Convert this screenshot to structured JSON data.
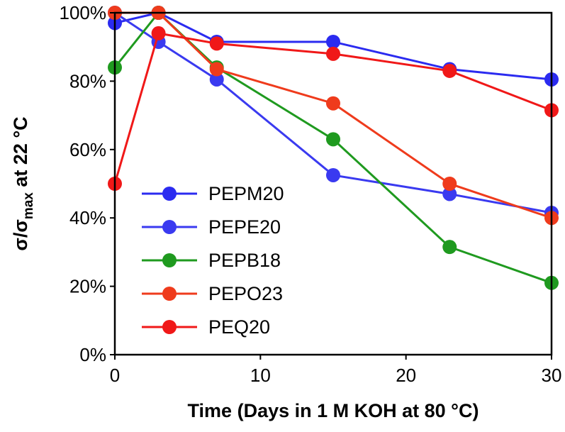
{
  "chart_data": {
    "type": "line",
    "title": "",
    "xlabel": "Time (Days in 1 M KOH at 80 °C)",
    "ylabel": {
      "main": "σ/σ",
      "sub": "max",
      "rest": " at 22 °C"
    },
    "xlim": [
      0,
      30
    ],
    "ylim": [
      0,
      100
    ],
    "xticks": [
      0,
      10,
      20,
      30
    ],
    "yticks": [
      0,
      20,
      40,
      60,
      80,
      100
    ],
    "ytick_labels": [
      "0%",
      "20%",
      "40%",
      "60%",
      "80%",
      "100%"
    ],
    "grid": false,
    "legend_position": "bottom-left",
    "series": [
      {
        "name": "PEPM20",
        "color": "#2b2bf0",
        "x": [
          0,
          3,
          7,
          15,
          23,
          30
        ],
        "values": [
          97,
          100,
          91.5,
          91.5,
          83.5,
          80.5
        ]
      },
      {
        "name": "PEPE20",
        "color": "#3a3af0",
        "x": [
          0,
          3,
          7,
          15,
          23,
          30
        ],
        "values": [
          100,
          91.5,
          80.5,
          52.5,
          47,
          41.5
        ]
      },
      {
        "name": "PEPB18",
        "color": "#1f9a1f",
        "x": [
          0,
          3,
          7,
          15,
          23,
          30
        ],
        "values": [
          84,
          100,
          84,
          63,
          31.5,
          21
        ]
      },
      {
        "name": "PEPO23",
        "color": "#ef3b1c",
        "x": [
          0,
          3,
          7,
          15,
          23,
          30
        ],
        "values": [
          100,
          100,
          83.5,
          73.5,
          50,
          40
        ]
      },
      {
        "name": "PEQ20",
        "color": "#f01818",
        "x": [
          0,
          3,
          7,
          15,
          23,
          30
        ],
        "values": [
          50,
          94,
          91,
          88,
          83,
          71.5
        ]
      }
    ]
  }
}
